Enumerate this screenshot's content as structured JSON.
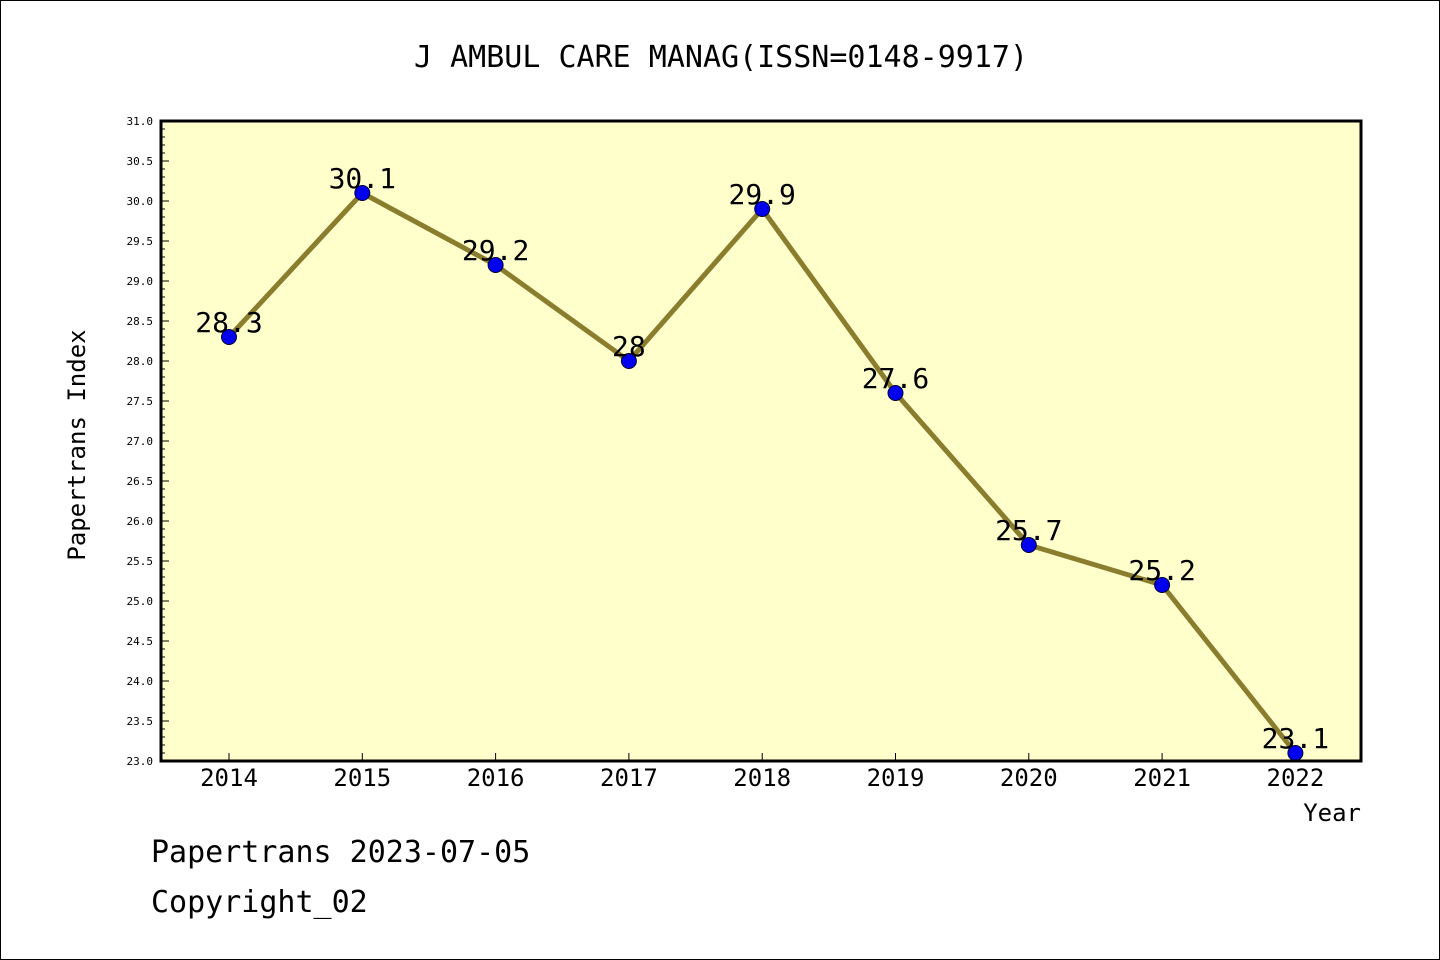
{
  "chart_data": {
    "type": "line",
    "title": "J AMBUL CARE MANAG(ISSN=0148-9917)",
    "xlabel": "Year",
    "ylabel": "Papertrans Index",
    "categories": [
      "2014",
      "2015",
      "2016",
      "2017",
      "2018",
      "2019",
      "2020",
      "2021",
      "2022"
    ],
    "series": [
      {
        "values": [
          28.3,
          30.1,
          29.2,
          28.0,
          29.9,
          27.6,
          25.7,
          25.2,
          23.1
        ],
        "labels": [
          "28.3",
          "30.1",
          "29.2",
          "28",
          "29.9",
          "27.6",
          "25.7",
          "25.2",
          "23.1"
        ]
      }
    ],
    "ylim": [
      23.0,
      31.0
    ],
    "yticks": [
      "23.0",
      "23.5",
      "24.0",
      "24.5",
      "25.0",
      "25.5",
      "26.0",
      "26.5",
      "27.0",
      "27.5",
      "28.0",
      "28.5",
      "29.0",
      "29.5",
      "30.0",
      "30.5",
      "31.0"
    ],
    "grid": false,
    "colors": {
      "plot_background": "#ffffcc",
      "line": "#8b7d2e",
      "marker": "#0000ee"
    }
  },
  "footer": {
    "line1": "Papertrans 2023-07-05",
    "line2": "Copyright_02"
  }
}
